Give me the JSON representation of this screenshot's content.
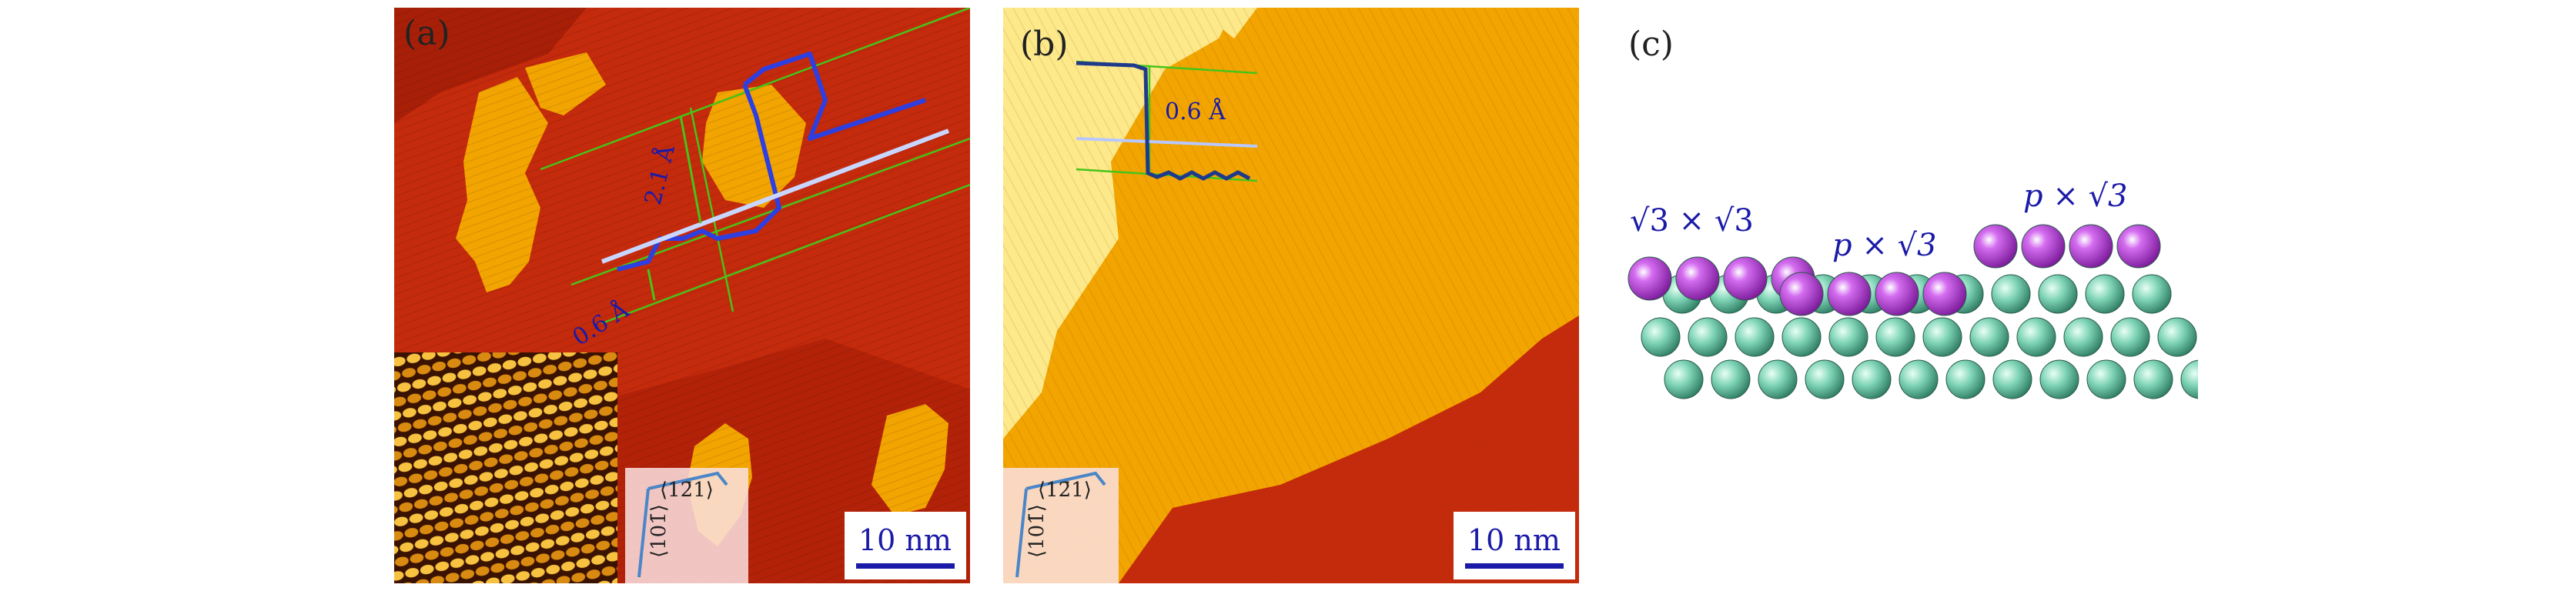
{
  "panels": {
    "a": {
      "label": "(a)",
      "step_height_large": "2.1 Å",
      "step_height_small": "0.6 Å",
      "scale_bar": "10 nm",
      "direction_1": "⟨12̄1⟩",
      "direction_2": "⟨101̄⟩"
    },
    "b": {
      "label": "(b)",
      "step_height": "0.6 Å",
      "scale_bar": "10 nm",
      "direction_1": "⟨12̄1⟩",
      "direction_2": "⟨101̄⟩"
    },
    "c": {
      "label": "(c)",
      "phase_1": "√3 × √3",
      "phase_2": "p × √3",
      "phase_3": "p × √3"
    }
  },
  "colors": {
    "terrace_dark": "#c42a0c",
    "terrace_mid": "#f2a400",
    "terrace_light": "#fde98a",
    "annotation_blue": "#1a1aa8",
    "profile_blue": "#2d3fe0",
    "guide_green": "#46c41a",
    "substrate_atom": "#7fd4b6",
    "adsorbate_atom": "#b33cd9"
  }
}
